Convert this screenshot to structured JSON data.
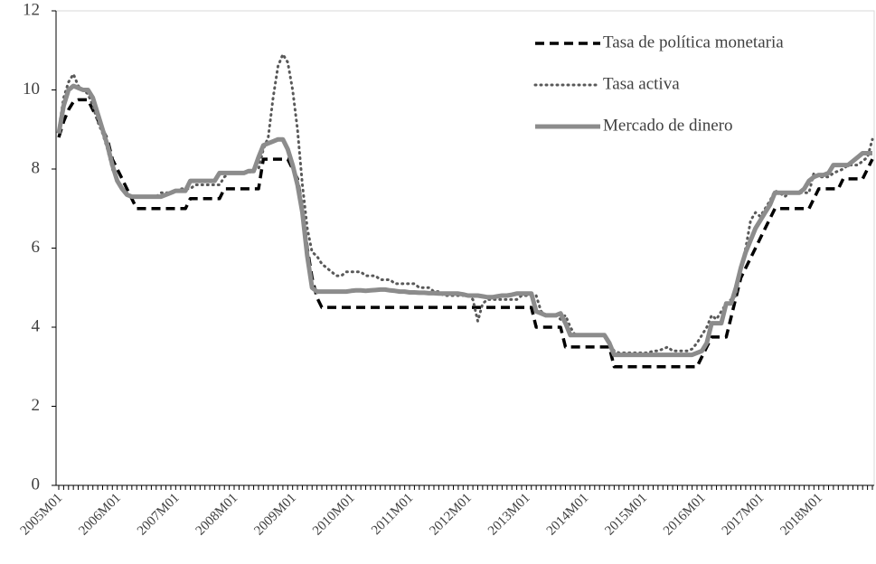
{
  "chart_data": {
    "type": "line",
    "categories": [
      "2005M01",
      null,
      null,
      null,
      null,
      null,
      null,
      null,
      null,
      null,
      null,
      null,
      "2006M01",
      null,
      null,
      null,
      null,
      null,
      null,
      null,
      null,
      null,
      null,
      null,
      "2007M01",
      null,
      null,
      null,
      null,
      null,
      null,
      null,
      null,
      null,
      null,
      null,
      "2008M01",
      null,
      null,
      null,
      null,
      null,
      null,
      null,
      null,
      null,
      null,
      null,
      "2009M01",
      null,
      null,
      null,
      null,
      null,
      null,
      null,
      null,
      null,
      null,
      null,
      "2010M01",
      null,
      null,
      null,
      null,
      null,
      null,
      null,
      null,
      null,
      null,
      null,
      "2011M01",
      null,
      null,
      null,
      null,
      null,
      null,
      null,
      null,
      null,
      null,
      null,
      "2012M01",
      null,
      null,
      null,
      null,
      null,
      null,
      null,
      null,
      null,
      null,
      null,
      "2013M01",
      null,
      null,
      null,
      null,
      null,
      null,
      null,
      null,
      null,
      null,
      null,
      "2014M01",
      null,
      null,
      null,
      null,
      null,
      null,
      null,
      null,
      null,
      null,
      null,
      "2015M01",
      null,
      null,
      null,
      null,
      null,
      null,
      null,
      null,
      null,
      null,
      null,
      "2016M01",
      null,
      null,
      null,
      null,
      null,
      null,
      null,
      null,
      null,
      null,
      null,
      "2017M01",
      null,
      null,
      null,
      null,
      null,
      null,
      null,
      null,
      null,
      null,
      null,
      "2018M01",
      null,
      null,
      null,
      null,
      null,
      null,
      null,
      null,
      null,
      null,
      null
    ],
    "series": [
      {
        "name": "Tasa de política monetaria",
        "color": "#000000",
        "style": "dashed",
        "values": [
          8.8,
          9.2,
          9.5,
          9.7,
          9.75,
          9.75,
          9.75,
          9.5,
          9.25,
          9.0,
          8.75,
          8.25,
          8.0,
          7.75,
          7.5,
          7.25,
          7.0,
          7,
          7,
          7,
          7,
          7,
          7,
          7,
          7,
          7,
          7,
          7.25,
          7.25,
          7.25,
          7.25,
          7.25,
          7.25,
          7.25,
          7.5,
          7.5,
          7.5,
          7.5,
          7.5,
          7.5,
          7.5,
          7.5,
          8.25,
          8.25,
          8.25,
          8.25,
          8.25,
          8.25,
          8.0,
          7.75,
          7.0,
          6.0,
          5.25,
          4.75,
          4.5,
          4.5,
          4.5,
          4.5,
          4.5,
          4.5,
          4.5,
          4.5,
          4.5,
          4.5,
          4.5,
          4.5,
          4.5,
          4.5,
          4.5,
          4.5,
          4.5,
          4.5,
          4.5,
          4.5,
          4.5,
          4.5,
          4.5,
          4.5,
          4.5,
          4.5,
          4.5,
          4.5,
          4.5,
          4.5,
          4.5,
          4.5,
          4.5,
          4.5,
          4.5,
          4.5,
          4.5,
          4.5,
          4.5,
          4.5,
          4.5,
          4.5,
          4.5,
          4.5,
          4.0,
          4.0,
          4.0,
          4.0,
          4.0,
          4.0,
          3.5,
          3.5,
          3.5,
          3.5,
          3.5,
          3.5,
          3.5,
          3.5,
          3.5,
          3.5,
          3.0,
          3.0,
          3.0,
          3.0,
          3.0,
          3.0,
          3.0,
          3.0,
          3.0,
          3.0,
          3.0,
          3.0,
          3.0,
          3.0,
          3.0,
          3.0,
          3.0,
          3.0,
          3.25,
          3.5,
          3.75,
          3.75,
          3.75,
          3.75,
          4.25,
          4.75,
          5.25,
          5.5,
          5.75,
          6.0,
          6.25,
          6.5,
          6.75,
          7.0,
          7.0,
          7.0,
          7.0,
          7.0,
          7.0,
          7.0,
          7.0,
          7.25,
          7.5,
          7.5,
          7.5,
          7.5,
          7.5,
          7.75,
          7.75,
          7.75,
          7.75,
          7.75,
          8.0,
          8.25
        ]
      },
      {
        "name": "Tasa activa",
        "color": "#595959",
        "style": "dotted",
        "values": [
          9.0,
          9.8,
          10.2,
          10.4,
          10.1,
          10.0,
          9.9,
          9.6,
          9.2,
          8.9,
          8.5,
          8.0,
          7.7,
          7.5,
          7.4,
          7.3,
          7.3,
          7.3,
          7.3,
          7.3,
          7.3,
          7.4,
          7.4,
          7.4,
          7.4,
          7.5,
          7.5,
          7.5,
          7.6,
          7.6,
          7.6,
          7.6,
          7.6,
          7.6,
          7.8,
          7.9,
          7.9,
          7.9,
          7.9,
          7.9,
          8.0,
          8.0,
          8.5,
          8.8,
          9.8,
          10.6,
          10.9,
          10.7,
          10.0,
          9.0,
          7.6,
          6.5,
          5.9,
          5.8,
          5.6,
          5.5,
          5.4,
          5.3,
          5.3,
          5.4,
          5.4,
          5.4,
          5.4,
          5.3,
          5.3,
          5.3,
          5.2,
          5.2,
          5.2,
          5.1,
          5.1,
          5.1,
          5.1,
          5.1,
          5.0,
          5.0,
          5.0,
          4.9,
          4.9,
          4.8,
          4.8,
          4.8,
          4.8,
          4.8,
          4.8,
          4.7,
          4.15,
          4.6,
          4.7,
          4.7,
          4.7,
          4.7,
          4.7,
          4.7,
          4.7,
          4.8,
          4.8,
          4.8,
          4.8,
          4.4,
          4.3,
          4.3,
          4.3,
          4.2,
          4.3,
          4.0,
          3.8,
          3.8,
          3.8,
          3.8,
          3.8,
          3.8,
          3.8,
          3.6,
          3.4,
          3.35,
          3.35,
          3.35,
          3.35,
          3.35,
          3.35,
          3.35,
          3.4,
          3.4,
          3.45,
          3.5,
          3.4,
          3.4,
          3.4,
          3.4,
          3.45,
          3.6,
          3.8,
          4.0,
          4.3,
          4.2,
          4.4,
          4.6,
          4.7,
          4.8,
          5.5,
          6.0,
          6.7,
          6.9,
          6.8,
          7.0,
          7.2,
          7.45,
          7.4,
          7.3,
          7.4,
          7.4,
          7.4,
          7.4,
          7.4,
          7.9,
          7.8,
          7.8,
          7.8,
          7.9,
          7.95,
          8.0,
          8.1,
          8.1,
          8.1,
          8.2,
          8.3,
          8.75
        ]
      },
      {
        "name": "Mercado de dinero",
        "color": "#8c8c8c",
        "style": "solid",
        "values": [
          8.9,
          9.6,
          10.0,
          10.1,
          10.05,
          10.0,
          10.0,
          9.8,
          9.4,
          9.0,
          8.6,
          8.1,
          7.7,
          7.5,
          7.35,
          7.3,
          7.3,
          7.3,
          7.3,
          7.3,
          7.3,
          7.3,
          7.35,
          7.4,
          7.45,
          7.45,
          7.45,
          7.7,
          7.7,
          7.7,
          7.7,
          7.7,
          7.7,
          7.9,
          7.9,
          7.9,
          7.9,
          7.9,
          7.9,
          7.95,
          7.95,
          8.3,
          8.6,
          8.65,
          8.7,
          8.75,
          8.75,
          8.5,
          8.1,
          7.6,
          6.9,
          5.8,
          5.0,
          4.9,
          4.9,
          4.9,
          4.9,
          4.9,
          4.9,
          4.9,
          4.92,
          4.93,
          4.93,
          4.92,
          4.93,
          4.94,
          4.95,
          4.95,
          4.93,
          4.92,
          4.9,
          4.9,
          4.88,
          4.88,
          4.87,
          4.87,
          4.86,
          4.86,
          4.85,
          4.85,
          4.85,
          4.85,
          4.85,
          4.83,
          4.8,
          4.8,
          4.8,
          4.78,
          4.76,
          4.76,
          4.78,
          4.8,
          4.8,
          4.82,
          4.85,
          4.85,
          4.85,
          4.85,
          4.4,
          4.35,
          4.3,
          4.3,
          4.3,
          4.35,
          4.1,
          3.8,
          3.8,
          3.8,
          3.8,
          3.8,
          3.8,
          3.8,
          3.8,
          3.6,
          3.3,
          3.3,
          3.3,
          3.3,
          3.3,
          3.3,
          3.3,
          3.3,
          3.3,
          3.3,
          3.3,
          3.3,
          3.3,
          3.3,
          3.3,
          3.3,
          3.3,
          3.35,
          3.4,
          3.6,
          4.1,
          4.1,
          4.1,
          4.6,
          4.6,
          5.0,
          5.5,
          5.9,
          6.2,
          6.5,
          6.7,
          6.9,
          7.1,
          7.4,
          7.4,
          7.4,
          7.4,
          7.4,
          7.4,
          7.5,
          7.7,
          7.8,
          7.85,
          7.85,
          7.9,
          8.1,
          8.1,
          8.1,
          8.1,
          8.2,
          8.3,
          8.4,
          8.4,
          8.4
        ]
      }
    ],
    "ylim": [
      0,
      12
    ],
    "yticks": [
      0,
      2,
      4,
      6,
      8,
      10,
      12
    ],
    "grid": false,
    "legend": "upper right"
  }
}
